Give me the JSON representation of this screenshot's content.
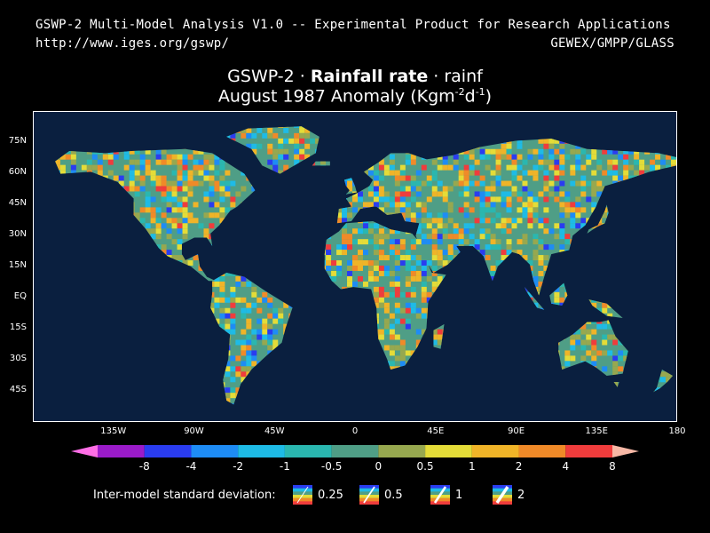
{
  "header": {
    "line1": "GSWP-2 Multi-Model Analysis V1.0 -- Experimental Product for Research Applications",
    "url": "http://www.iges.org/gswp/",
    "org": "GEWEX/GMPP/GLASS"
  },
  "title": {
    "prefix": "GSWP-2 · ",
    "variable": "Rainfall rate",
    "suffix": " · rainf",
    "subtitle_main": "August 1987 Anomaly (Kgm",
    "subtitle_exp1": "-2",
    "subtitle_mid": "d",
    "subtitle_exp2": "-1",
    "subtitle_end": ")"
  },
  "axes": {
    "lat_labels": [
      "75N",
      "60N",
      "45N",
      "30N",
      "15N",
      "EQ",
      "15S",
      "30S",
      "45S"
    ],
    "lat_values": [
      75,
      60,
      45,
      30,
      15,
      0,
      -15,
      -30,
      -45
    ],
    "lat_range": [
      -60,
      90
    ],
    "lon_labels": [
      "135W",
      "90W",
      "45W",
      "0",
      "45E",
      "90E",
      "135E",
      "180"
    ],
    "lon_values": [
      -135,
      -90,
      -45,
      0,
      45,
      90,
      135,
      180
    ],
    "lon_range": [
      -180,
      180
    ]
  },
  "colorbar": {
    "labels": [
      "-8",
      "-4",
      "-2",
      "-1",
      "-0.5",
      "0",
      "0.5",
      "1",
      "2",
      "4",
      "8"
    ],
    "colors": [
      "#9b1bc9",
      "#2a3cf0",
      "#1e8cf5",
      "#1ebbe6",
      "#2ab7b0",
      "#4f9e86",
      "#97a84f",
      "#e4dc38",
      "#f0b428",
      "#f08a28",
      "#f03c3c"
    ],
    "end_low": "#ff6ee6",
    "end_high": "#f7b8a6"
  },
  "legend": {
    "label": "Inter-model standard deviation:",
    "items": [
      "0.25",
      "0.5",
      "1",
      "2"
    ]
  },
  "map_colors": {
    "ocean": "#0a1f3f",
    "land_neutral": "#4f9e86",
    "outline": "#000000"
  }
}
